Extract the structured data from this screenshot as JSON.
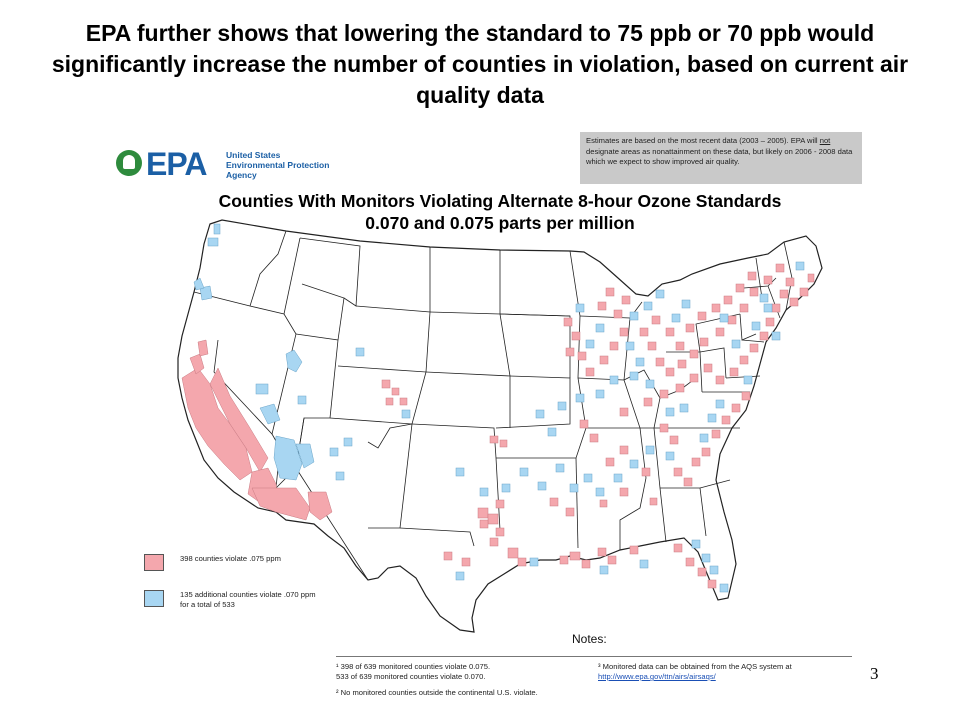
{
  "slide": {
    "title": "EPA further shows that lowering the standard to 75 ppb or 70 ppb would significantly increase the number of counties in violation, based on current air quality data",
    "page_number": "3"
  },
  "figure": {
    "logo": {
      "wordmark": "EPA",
      "line1": "United States",
      "line2": "Environmental Protection",
      "line3": "Agency"
    },
    "notice": {
      "part1": "Estimates are based on the most recent data (2003 – 2005). EPA will ",
      "emph": "not",
      "part2": " designate areas as nonattainment on these data, but likely on 2006 - 2008 data which we expect to show improved air quality."
    },
    "title_line1": "Counties With Monitors Violating Alternate 8-hour Ozone Standards",
    "title_line2": "0.070 and 0.075 parts per million",
    "legend": [
      {
        "label_line1": "398 counties violate .075 ppm",
        "label_line2": "",
        "color": "#f4a7ad"
      },
      {
        "label_line1": "135 additional counties violate .070 ppm",
        "label_line2": "for a total of 533",
        "color": "#a8d6f2"
      }
    ],
    "notes": {
      "heading": "Notes:",
      "note1_line1": "¹ 398 of 639 monitored counties violate 0.075.",
      "note1_line2": "533 of 639 monitored counties violate 0.070.",
      "note2": "² No monitored counties outside the continental U.S. violate.",
      "note3_line1": "³ Monitored data can be obtained from the AQS system at",
      "note3_link": "http://www.epa.gov/ttn/airs/airsaqs/"
    },
    "colors": {
      "violate_075": "#f4a7ad",
      "violate_070": "#a8d6f2",
      "state_border": "#222222",
      "notice_bg": "#c9c9c9"
    }
  }
}
